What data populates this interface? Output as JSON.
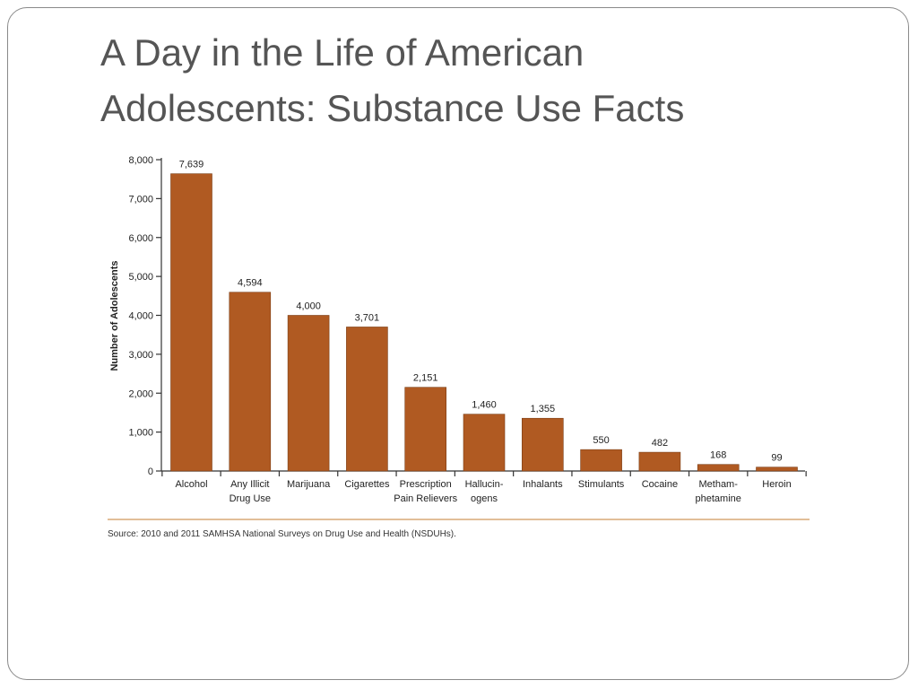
{
  "slide": {
    "title_line1": "A Day in the Life of American",
    "title_line2": "Adolescents: Substance Use Facts"
  },
  "chart_data": {
    "type": "bar",
    "ylabel": "Number of Adolescents",
    "xlabel": "",
    "ylim": [
      0,
      8000
    ],
    "yticks": [
      0,
      1000,
      2000,
      3000,
      4000,
      5000,
      6000,
      7000,
      8000
    ],
    "ytick_labels": [
      "0",
      "1,000",
      "2,000",
      "3,000",
      "4,000",
      "5,000",
      "6,000",
      "7,000",
      "8,000"
    ],
    "categories": [
      [
        "Alcohol"
      ],
      [
        "Any Illicit",
        "Drug Use"
      ],
      [
        "Marijuana"
      ],
      [
        "Cigarettes"
      ],
      [
        "Prescription",
        "Pain Relievers"
      ],
      [
        "Hallucin-",
        "ogens"
      ],
      [
        "Inhalants"
      ],
      [
        "Stimulants"
      ],
      [
        "Cocaine"
      ],
      [
        "Metham-",
        "phetamine"
      ],
      [
        "Heroin"
      ]
    ],
    "values": [
      7639,
      4594,
      4000,
      3701,
      2151,
      1460,
      1355,
      550,
      482,
      168,
      99
    ],
    "value_labels": [
      "7,639",
      "4,594",
      "4,000",
      "3,701",
      "2,151",
      "1,460",
      "1,355",
      "550",
      "482",
      "168",
      "99"
    ],
    "bar_color": "#b05a22",
    "separator_color": "#d9a877",
    "grid": false,
    "source": "Source: 2010 and 2011 SAMHSA National Surveys on Drug Use and Health (NSDUHs)."
  }
}
